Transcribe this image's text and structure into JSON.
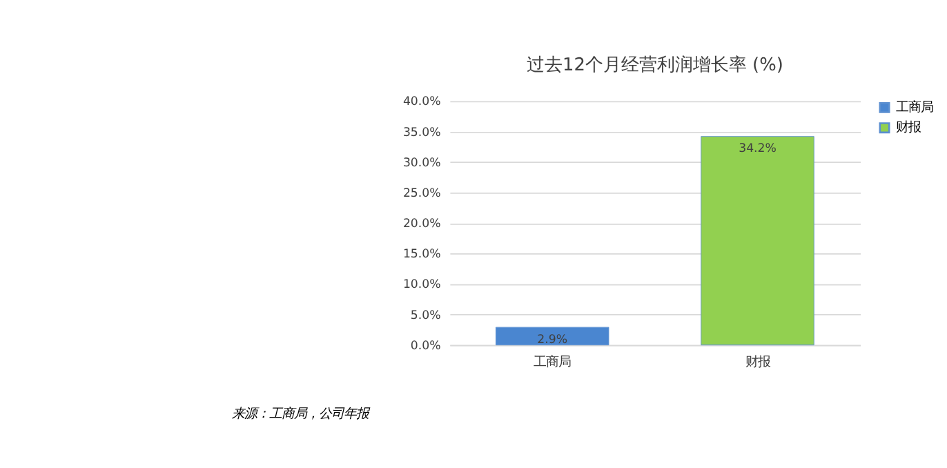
{
  "chart_data": {
    "type": "bar",
    "title": "过去12个月经营利润增长率 (%)",
    "categories": [
      "工商局",
      "财报"
    ],
    "series": [
      {
        "name": "工商局",
        "color": "#4a86d0",
        "values": [
          2.9,
          null
        ],
        "value_labels": [
          "2.9%",
          null
        ]
      },
      {
        "name": "财报",
        "color": "#92d050",
        "values": [
          null,
          34.2
        ],
        "value_labels": [
          null,
          "34.2%"
        ]
      }
    ],
    "ylim": [
      0,
      40
    ],
    "yticks": [
      {
        "value": 0,
        "label": "0.0%"
      },
      {
        "value": 5,
        "label": "5.0%"
      },
      {
        "value": 10,
        "label": "10.0%"
      },
      {
        "value": 15,
        "label": "15.0%"
      },
      {
        "value": 20,
        "label": "20.0%"
      },
      {
        "value": 25,
        "label": "25.0%"
      },
      {
        "value": 30,
        "label": "30.0%"
      },
      {
        "value": 35,
        "label": "35.0%"
      },
      {
        "value": 40,
        "label": "40.0%"
      }
    ],
    "grid": "y",
    "legend": "right",
    "annotations": [
      "来源：工商局，公司年报"
    ]
  }
}
